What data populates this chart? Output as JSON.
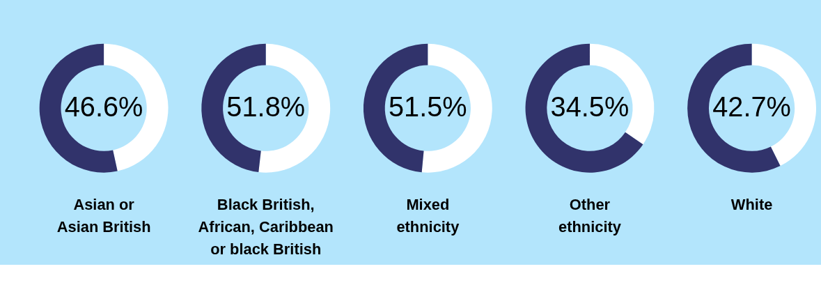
{
  "chart_data": [
    {
      "type": "donut",
      "title": "Asian or\nAsian British",
      "categories": [
        null,
        null
      ],
      "values": [
        46.6,
        53.4
      ],
      "colors": [
        "#ffffff",
        "#31336b"
      ],
      "value_labels": [
        "46.6%",
        null
      ]
    },
    {
      "type": "donut",
      "title": "Black British,\nAfrican, Caribbean\nor black British",
      "categories": [
        null,
        null
      ],
      "values": [
        51.8,
        48.2
      ],
      "colors": [
        "#ffffff",
        "#31336b"
      ],
      "value_labels": [
        "51.8%",
        null
      ]
    },
    {
      "type": "donut",
      "title": "Mixed\nethnicity",
      "categories": [
        null,
        null
      ],
      "values": [
        51.5,
        48.5
      ],
      "colors": [
        "#ffffff",
        "#31336b"
      ],
      "value_labels": [
        "51.5%",
        null
      ]
    },
    {
      "type": "donut",
      "title": "Other\nethnicity",
      "categories": [
        null,
        null
      ],
      "values": [
        34.5,
        65.5
      ],
      "colors": [
        "#ffffff",
        "#31336b"
      ],
      "value_labels": [
        "34.5%",
        null
      ]
    },
    {
      "type": "donut",
      "title": "White",
      "categories": [
        null,
        null
      ],
      "values": [
        42.7,
        57.3
      ],
      "colors": [
        "#ffffff",
        "#31336b"
      ],
      "value_labels": [
        "42.7%",
        null
      ]
    }
  ]
}
